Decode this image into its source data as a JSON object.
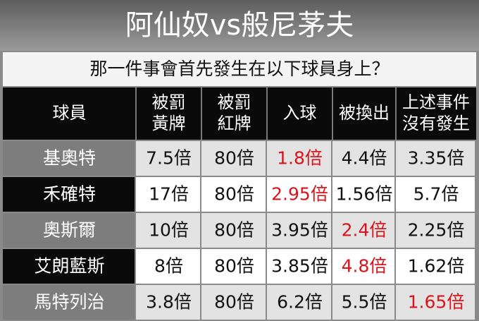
{
  "header": {
    "title": "阿仙奴vs般尼茅夫",
    "subtitle": "那一件事會首先發生在以下球員身上？"
  },
  "table": {
    "columns": [
      [
        "球員"
      ],
      [
        "被罰",
        "黃牌"
      ],
      [
        "被罰",
        "紅牌"
      ],
      [
        "入球"
      ],
      [
        "被換出"
      ],
      [
        "上述事件",
        "沒有發生"
      ]
    ],
    "highlight_color": "#d8151c",
    "rows": [
      {
        "player": "基奧特",
        "odds": [
          "7.5倍",
          "80倍",
          "1.8倍",
          "4.4倍",
          "3.35倍"
        ],
        "highlight": 2
      },
      {
        "player": "禾確特",
        "odds": [
          "17倍",
          "80倍",
          "2.95倍",
          "1.56倍",
          "5.7倍"
        ],
        "highlight": 2
      },
      {
        "player": "奧斯爾",
        "odds": [
          "10倍",
          "80倍",
          "3.95倍",
          "2.4倍",
          "2.25倍"
        ],
        "highlight": 3
      },
      {
        "player": "艾朗藍斯",
        "odds": [
          "8倍",
          "80倍",
          "3.85倍",
          "4.8倍",
          "1.62倍"
        ],
        "highlight": 3
      },
      {
        "player": "馬特列治",
        "odds": [
          "3.8倍",
          "80倍",
          "6.2倍",
          "5.5倍",
          "1.65倍"
        ],
        "highlight": 4
      }
    ]
  }
}
